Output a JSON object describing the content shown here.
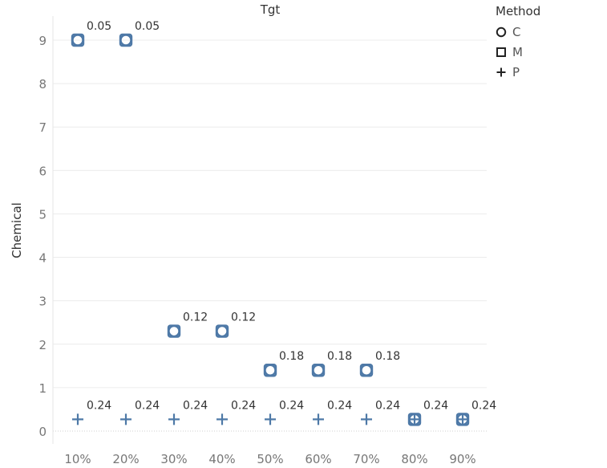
{
  "chart_data": {
    "type": "scatter",
    "title": "Tgt",
    "xlabel": "",
    "ylabel": "Chemical",
    "categories": [
      "10%",
      "20%",
      "30%",
      "40%",
      "50%",
      "60%",
      "70%",
      "80%",
      "90%"
    ],
    "ylim": [
      0,
      9
    ],
    "yticks": [
      "0",
      "1",
      "2",
      "3",
      "4",
      "5",
      "6",
      "7",
      "8",
      "9"
    ],
    "grid": true,
    "legend": {
      "title": "Method",
      "position": "top-right",
      "entries": [
        {
          "name": "C",
          "shape": "circle"
        },
        {
          "name": "M",
          "shape": "square"
        },
        {
          "name": "P",
          "shape": "plus"
        }
      ]
    },
    "series": [
      {
        "name": "C",
        "shape": "circle",
        "y": [
          9,
          9,
          2.3,
          2.3,
          1.4,
          1.4,
          1.4,
          0.27,
          0.27
        ]
      },
      {
        "name": "M",
        "shape": "square",
        "y": [
          9,
          9,
          2.3,
          2.3,
          1.4,
          1.4,
          1.4,
          0.27,
          0.27
        ]
      },
      {
        "name": "P",
        "shape": "plus",
        "y": [
          0.27,
          0.27,
          0.27,
          0.27,
          0.27,
          0.27,
          0.27,
          0.27,
          0.27
        ]
      }
    ],
    "labels": [
      {
        "x": "10%",
        "y": 9,
        "text": "0.05"
      },
      {
        "x": "20%",
        "y": 9,
        "text": "0.05"
      },
      {
        "x": "30%",
        "y": 2.3,
        "text": "0.12"
      },
      {
        "x": "40%",
        "y": 2.3,
        "text": "0.12"
      },
      {
        "x": "50%",
        "y": 1.4,
        "text": "0.18"
      },
      {
        "x": "60%",
        "y": 1.4,
        "text": "0.18"
      },
      {
        "x": "70%",
        "y": 1.4,
        "text": "0.18"
      },
      {
        "x": "10%",
        "y": 0.27,
        "text": "0.24"
      },
      {
        "x": "20%",
        "y": 0.27,
        "text": "0.24"
      },
      {
        "x": "30%",
        "y": 0.27,
        "text": "0.24"
      },
      {
        "x": "40%",
        "y": 0.27,
        "text": "0.24"
      },
      {
        "x": "50%",
        "y": 0.27,
        "text": "0.24"
      },
      {
        "x": "60%",
        "y": 0.27,
        "text": "0.24"
      },
      {
        "x": "70%",
        "y": 0.27,
        "text": "0.24"
      },
      {
        "x": "80%",
        "y": 0.27,
        "text": "0.24"
      },
      {
        "x": "90%",
        "y": 0.27,
        "text": "0.24"
      }
    ],
    "colors": {
      "marker": "#4e79a7",
      "grid": "#ececec",
      "axis_text": "#777777",
      "label_text": "#333333"
    }
  }
}
